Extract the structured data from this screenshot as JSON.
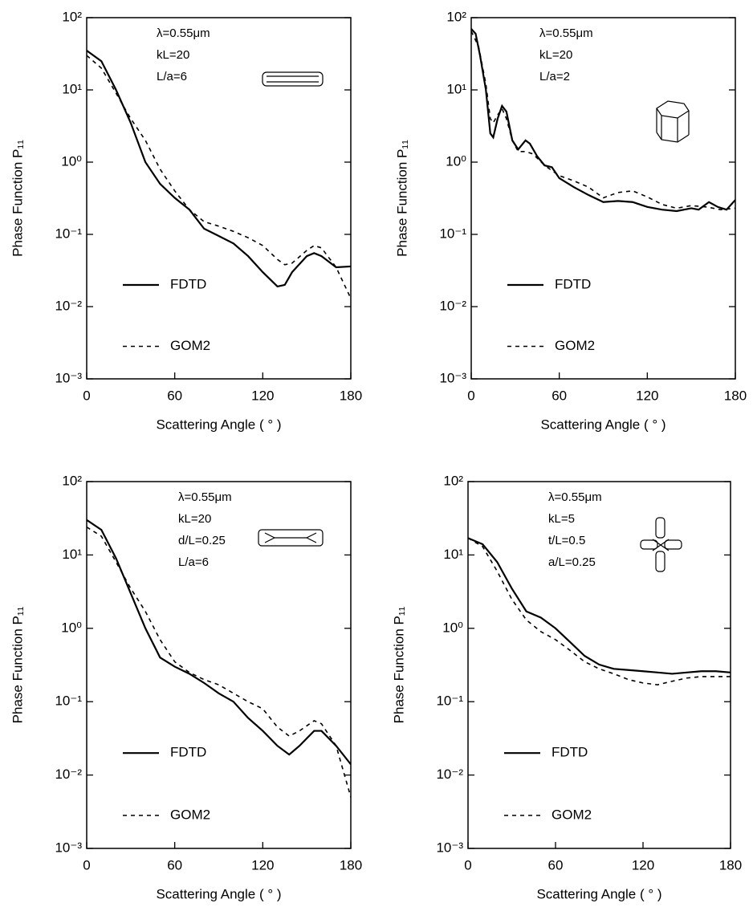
{
  "chart_data": [
    {
      "type": "line",
      "ylabel": "Phase Function P₁₁",
      "xlabel": "Scattering Angle ( ° )",
      "log_y": true,
      "legend": "lower left",
      "annotations": [
        "λ=0.55μm",
        "kL=20",
        "L/a=6"
      ],
      "xlim": [
        0,
        180
      ],
      "xticks": [
        0,
        60,
        120,
        180
      ],
      "ylim": [
        0.001,
        100
      ],
      "yticks": [
        {
          "value": 0.001,
          "label": "10⁻³"
        },
        {
          "value": 0.01,
          "label": "10⁻²"
        },
        {
          "value": 0.1,
          "label": "10⁻¹"
        },
        {
          "value": 1,
          "label": "10⁰"
        },
        {
          "value": 10,
          "label": "10¹"
        },
        {
          "value": 100,
          "label": "10²"
        }
      ],
      "series": [
        {
          "name": "FDTD",
          "color": "#000000",
          "linestyle": "solid",
          "x": [
            0,
            10,
            20,
            30,
            40,
            50,
            60,
            70,
            80,
            90,
            100,
            110,
            120,
            130,
            135,
            140,
            150,
            155,
            160,
            170,
            180
          ],
          "values": [
            35,
            25,
            10,
            3.5,
            1.0,
            0.5,
            0.32,
            0.22,
            0.12,
            0.095,
            0.075,
            0.05,
            0.03,
            0.019,
            0.02,
            0.03,
            0.05,
            0.055,
            0.05,
            0.035,
            0.036
          ]
        },
        {
          "name": "GOM2",
          "color": "#000000",
          "linestyle": "dashed",
          "x": [
            0,
            10,
            20,
            30,
            40,
            50,
            60,
            70,
            80,
            90,
            100,
            110,
            120,
            130,
            135,
            140,
            150,
            155,
            160,
            170,
            180
          ],
          "values": [
            30,
            20,
            9,
            4,
            2,
            0.8,
            0.4,
            0.22,
            0.15,
            0.13,
            0.11,
            0.09,
            0.07,
            0.045,
            0.038,
            0.04,
            0.06,
            0.07,
            0.065,
            0.035,
            0.013
          ]
        }
      ]
    },
    {
      "type": "line",
      "ylabel": "Phase Function P₁₁",
      "xlabel": "Scattering Angle ( ° )",
      "log_y": true,
      "legend": "lower left",
      "annotations": [
        "λ=0.55μm",
        "kL=20",
        "L/a=2"
      ],
      "xlim": [
        0,
        180
      ],
      "xticks": [
        0,
        60,
        120,
        180
      ],
      "ylim": [
        0.001,
        100
      ],
      "yticks": [
        {
          "value": 0.001,
          "label": "10⁻³"
        },
        {
          "value": 0.01,
          "label": "10⁻²"
        },
        {
          "value": 0.1,
          "label": "10⁻¹"
        },
        {
          "value": 1,
          "label": "10⁰"
        },
        {
          "value": 10,
          "label": "10¹"
        },
        {
          "value": 100,
          "label": "10²"
        }
      ],
      "series": [
        {
          "name": "FDTD",
          "color": "#000000",
          "linestyle": "solid",
          "x": [
            0,
            3,
            6,
            10,
            13,
            15,
            18,
            21,
            24,
            28,
            32,
            37,
            40,
            45,
            50,
            55,
            60,
            70,
            80,
            90,
            100,
            110,
            120,
            130,
            140,
            150,
            155,
            162,
            168,
            174,
            180
          ],
          "values": [
            70,
            60,
            30,
            10,
            2.5,
            2.2,
            4,
            6,
            5,
            2,
            1.5,
            2,
            1.8,
            1.2,
            0.9,
            0.85,
            0.6,
            0.45,
            0.35,
            0.28,
            0.29,
            0.28,
            0.24,
            0.22,
            0.21,
            0.23,
            0.22,
            0.28,
            0.24,
            0.22,
            0.3
          ]
        },
        {
          "name": "GOM2",
          "color": "#000000",
          "linestyle": "dashed",
          "x": [
            0,
            5,
            10,
            13,
            15,
            18,
            21,
            24,
            28,
            32,
            37,
            42,
            50,
            60,
            70,
            80,
            90,
            100,
            110,
            120,
            130,
            140,
            150,
            160,
            170,
            180
          ],
          "values": [
            65,
            40,
            12,
            4,
            3.5,
            4.5,
            5.5,
            4,
            2,
            1.4,
            1.4,
            1.3,
            0.9,
            0.65,
            0.55,
            0.45,
            0.32,
            0.38,
            0.4,
            0.33,
            0.26,
            0.23,
            0.25,
            0.24,
            0.22,
            0.23
          ]
        }
      ]
    },
    {
      "type": "line",
      "ylabel": "Phase Function P₁₁",
      "xlabel": "Scattering Angle ( ° )",
      "log_y": true,
      "legend": "lower left",
      "annotations": [
        "λ=0.55μm",
        "kL=20",
        "d/L=0.25",
        "L/a=6"
      ],
      "xlim": [
        0,
        180
      ],
      "xticks": [
        0,
        60,
        120,
        180
      ],
      "ylim": [
        0.001,
        100
      ],
      "yticks": [
        {
          "value": 0.001,
          "label": "10⁻³"
        },
        {
          "value": 0.01,
          "label": "10⁻²"
        },
        {
          "value": 0.1,
          "label": "10⁻¹"
        },
        {
          "value": 1,
          "label": "10⁰"
        },
        {
          "value": 10,
          "label": "10¹"
        },
        {
          "value": 100,
          "label": "10²"
        }
      ],
      "series": [
        {
          "name": "FDTD",
          "color": "#000000",
          "linestyle": "solid",
          "x": [
            0,
            10,
            20,
            30,
            40,
            50,
            60,
            70,
            80,
            90,
            100,
            110,
            120,
            130,
            138,
            145,
            155,
            160,
            170,
            180
          ],
          "values": [
            30,
            22,
            9,
            3,
            1,
            0.4,
            0.3,
            0.24,
            0.18,
            0.13,
            0.1,
            0.06,
            0.04,
            0.025,
            0.019,
            0.025,
            0.04,
            0.04,
            0.025,
            0.014
          ]
        },
        {
          "name": "GOM2",
          "color": "#000000",
          "linestyle": "dashed",
          "x": [
            0,
            10,
            20,
            30,
            40,
            50,
            60,
            70,
            80,
            90,
            100,
            110,
            120,
            130,
            138,
            145,
            155,
            160,
            170,
            180
          ],
          "values": [
            24,
            18,
            8,
            3.5,
            1.7,
            0.7,
            0.35,
            0.25,
            0.2,
            0.17,
            0.13,
            0.1,
            0.08,
            0.045,
            0.034,
            0.04,
            0.055,
            0.05,
            0.025,
            0.005
          ]
        }
      ]
    },
    {
      "type": "line",
      "ylabel": "Phase Function P₁₁",
      "xlabel": "Scattering Angle ( ° )",
      "log_y": true,
      "legend": "lower left",
      "annotations": [
        "λ=0.55μm",
        "kL=5",
        "t/L=0.5",
        "a/L=0.25"
      ],
      "xlim": [
        0,
        180
      ],
      "xticks": [
        0,
        60,
        120,
        180
      ],
      "ylim": [
        0.001,
        100
      ],
      "yticks": [
        {
          "value": 0.001,
          "label": "10⁻³"
        },
        {
          "value": 0.01,
          "label": "10⁻²"
        },
        {
          "value": 0.1,
          "label": "10⁻¹"
        },
        {
          "value": 1,
          "label": "10⁰"
        },
        {
          "value": 10,
          "label": "10¹"
        },
        {
          "value": 100,
          "label": "10²"
        }
      ],
      "series": [
        {
          "name": "FDTD",
          "color": "#000000",
          "linestyle": "solid",
          "x": [
            0,
            10,
            20,
            30,
            40,
            50,
            60,
            70,
            80,
            90,
            100,
            110,
            120,
            130,
            140,
            150,
            160,
            170,
            180
          ],
          "values": [
            17,
            14,
            8,
            3.5,
            1.7,
            1.4,
            1.0,
            0.65,
            0.42,
            0.32,
            0.28,
            0.27,
            0.26,
            0.25,
            0.24,
            0.25,
            0.26,
            0.26,
            0.25
          ]
        },
        {
          "name": "GOM2",
          "color": "#000000",
          "linestyle": "dashed",
          "x": [
            0,
            10,
            20,
            30,
            40,
            50,
            60,
            70,
            80,
            90,
            100,
            110,
            120,
            130,
            140,
            150,
            160,
            170,
            180
          ],
          "values": [
            17,
            13,
            6,
            2.5,
            1.3,
            0.9,
            0.7,
            0.5,
            0.35,
            0.28,
            0.24,
            0.2,
            0.18,
            0.17,
            0.19,
            0.21,
            0.22,
            0.22,
            0.22
          ]
        }
      ]
    }
  ]
}
